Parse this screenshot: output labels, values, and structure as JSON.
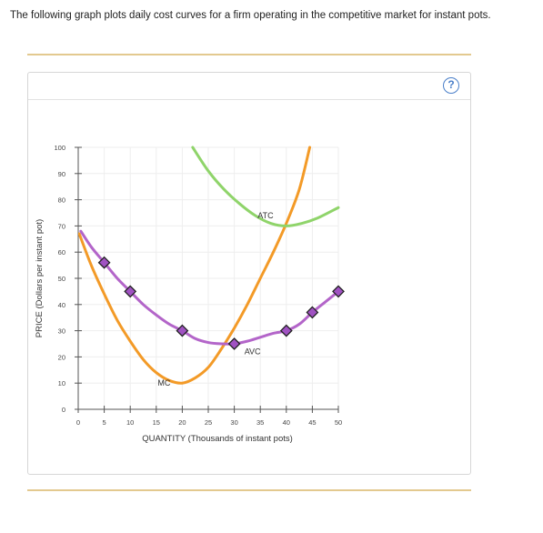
{
  "intro_text": "The following graph plots daily cost curves for a firm operating in the competitive market for instant pots.",
  "help_label": "?",
  "chart_data": {
    "type": "line",
    "xlabel": "QUANTITY (Thousands of instant pots)",
    "ylabel": "PRICE (Dollars per instant pot)",
    "xlim": [
      0,
      50
    ],
    "ylim": [
      0,
      100
    ],
    "xticks": [
      0,
      5,
      10,
      15,
      20,
      25,
      30,
      35,
      40,
      45,
      50
    ],
    "yticks": [
      0,
      10,
      20,
      30,
      40,
      50,
      60,
      70,
      80,
      90,
      100
    ],
    "grid": true,
    "series": [
      {
        "name": "MC",
        "color": "#f39a27",
        "x": [
          0.2,
          2.5,
          5,
          7.5,
          10,
          12.5,
          15,
          17.5,
          20,
          22.5,
          25,
          27.5,
          30,
          32.5,
          35,
          37.5,
          40,
          42.5,
          44.5
        ],
        "y": [
          67,
          55,
          44,
          34,
          26,
          19,
          14,
          11,
          10,
          12,
          16,
          23,
          31,
          40,
          50,
          60,
          71,
          84,
          100
        ]
      },
      {
        "name": "ATC",
        "color": "#8fd46a",
        "x": [
          22,
          25,
          28,
          31,
          34,
          37,
          40,
          43,
          46,
          50
        ],
        "y": [
          100,
          91,
          84,
          78.5,
          74,
          71,
          70,
          71,
          73,
          77
        ]
      },
      {
        "name": "AVC",
        "color": "#b365c9",
        "x": [
          0.5,
          2.5,
          5,
          7.5,
          10,
          12.5,
          15,
          17.5,
          20,
          22.5,
          25,
          27.5,
          30,
          32.5,
          35,
          37.5,
          40,
          42.5,
          45,
          47.5,
          50
        ],
        "y": [
          68,
          62,
          56,
          50,
          45,
          40,
          36,
          32.5,
          30,
          27,
          25.5,
          25,
          25,
          26,
          27.5,
          29,
          30,
          32.5,
          37,
          41,
          45
        ]
      }
    ],
    "markers": {
      "color": "#a052c2",
      "points": [
        [
          5,
          56
        ],
        [
          10,
          45
        ],
        [
          20,
          30
        ],
        [
          30,
          25
        ],
        [
          40,
          30
        ],
        [
          45,
          37
        ],
        [
          50,
          45
        ]
      ]
    },
    "annotations": [
      {
        "text": "ATC",
        "x": 36,
        "y": 73
      },
      {
        "text": "AVC",
        "x": 33.5,
        "y": 21
      },
      {
        "text": "MC",
        "x": 16.5,
        "y": 9
      }
    ]
  }
}
